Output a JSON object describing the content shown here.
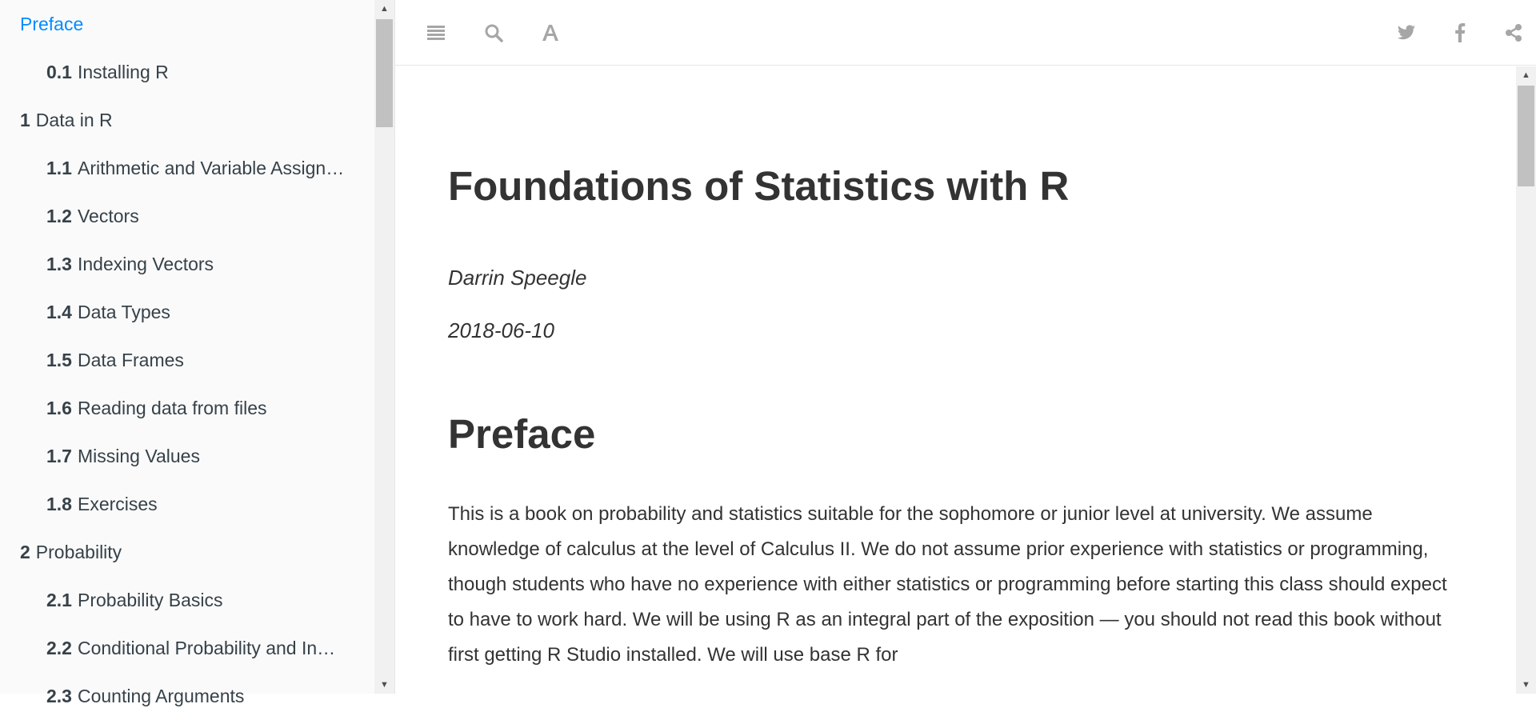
{
  "colors": {
    "sidebar_bg": "#fafafa",
    "toc_text": "#364149",
    "toc_active": "#008cff",
    "icon_gray": "#a6a6a6",
    "content_text": "#333333"
  },
  "sidebar": {
    "items": [
      {
        "num": "",
        "label": "Preface",
        "level": 1,
        "active": true
      },
      {
        "num": "0.1",
        "label": "Installing R",
        "level": 2,
        "active": false
      },
      {
        "num": "1",
        "label": "Data in R",
        "level": 1,
        "active": false
      },
      {
        "num": "1.1",
        "label": "Arithmetic and Variable Assign…",
        "level": 2,
        "active": false
      },
      {
        "num": "1.2",
        "label": "Vectors",
        "level": 2,
        "active": false
      },
      {
        "num": "1.3",
        "label": "Indexing Vectors",
        "level": 2,
        "active": false
      },
      {
        "num": "1.4",
        "label": "Data Types",
        "level": 2,
        "active": false
      },
      {
        "num": "1.5",
        "label": "Data Frames",
        "level": 2,
        "active": false
      },
      {
        "num": "1.6",
        "label": "Reading data from files",
        "level": 2,
        "active": false
      },
      {
        "num": "1.7",
        "label": "Missing Values",
        "level": 2,
        "active": false
      },
      {
        "num": "1.8",
        "label": "Exercises",
        "level": 2,
        "active": false
      },
      {
        "num": "2",
        "label": "Probability",
        "level": 1,
        "active": false
      },
      {
        "num": "2.1",
        "label": "Probability Basics",
        "level": 2,
        "active": false
      },
      {
        "num": "2.2",
        "label": "Conditional Probability and In…",
        "level": 2,
        "active": false
      },
      {
        "num": "2.3",
        "label": "Counting Arguments",
        "level": 2,
        "active": false
      }
    ]
  },
  "toolbar": {
    "left_icons": [
      "menu-icon",
      "search-icon",
      "font-settings-icon"
    ],
    "right_icons": [
      "twitter-icon",
      "facebook-icon",
      "share-icon"
    ]
  },
  "main": {
    "title": "Foundations of Statistics with R",
    "author": "Darrin Speegle",
    "date": "2018-06-10",
    "section_title": "Preface",
    "paragraph": "This is a book on probability and statistics suitable for the sophomore or junior level at university. We assume knowledge of calculus at the level of Calculus II. We do not assume prior experience with statistics or programming, though students who have no experience with either statistics or programming before starting this class should expect to have to work hard. We will be using R as an integral part of the exposition — you should not read this book without first getting R Studio installed. We will use base R for"
  }
}
